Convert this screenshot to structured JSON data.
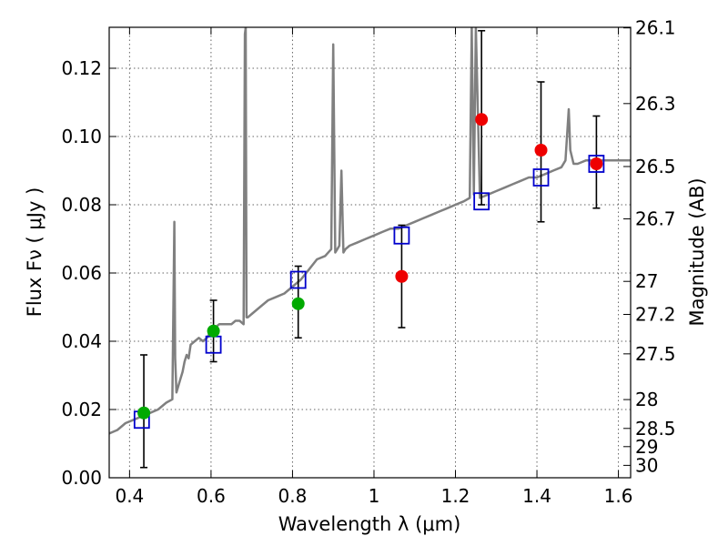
{
  "chart_data": {
    "type": "scatter",
    "xlabel": "Wavelength  λ (μm)",
    "ylabel": "Flux  Fν  ( μJy )",
    "ylabel_right": "Magnitude (AB)",
    "xlim": [
      0.35,
      1.63
    ],
    "ylim": [
      0.0,
      0.132
    ],
    "grid": true,
    "x_ticks": [
      {
        "value": 0.4,
        "label": "0.4"
      },
      {
        "value": 0.6,
        "label": "0.6"
      },
      {
        "value": 0.8,
        "label": "0.8"
      },
      {
        "value": 1.0,
        "label": "1"
      },
      {
        "value": 1.2,
        "label": "1.2"
      },
      {
        "value": 1.4,
        "label": "1.4"
      },
      {
        "value": 1.6,
        "label": "1.6"
      }
    ],
    "y_ticks": [
      {
        "value": 0.0,
        "label": "0.00"
      },
      {
        "value": 0.02,
        "label": "0.02"
      },
      {
        "value": 0.04,
        "label": "0.04"
      },
      {
        "value": 0.06,
        "label": "0.06"
      },
      {
        "value": 0.08,
        "label": "0.08"
      },
      {
        "value": 0.1,
        "label": "0.10"
      },
      {
        "value": 0.12,
        "label": "0.12"
      }
    ],
    "magnitude_ticks": [
      {
        "mag": 26.1,
        "label": "26.1"
      },
      {
        "mag": 26.3,
        "label": "26.3"
      },
      {
        "mag": 26.5,
        "label": "26.5"
      },
      {
        "mag": 26.7,
        "label": "26.7"
      },
      {
        "mag": 27.0,
        "label": "27"
      },
      {
        "mag": 27.2,
        "label": "27.2"
      },
      {
        "mag": 27.5,
        "label": "27.5"
      },
      {
        "mag": 28.0,
        "label": "28"
      },
      {
        "mag": 28.5,
        "label": "28.5"
      },
      {
        "mag": 29.0,
        "label": "29"
      },
      {
        "mag": 30.0,
        "label": "30"
      }
    ],
    "colors": {
      "spectrum": "#808080",
      "model_box": "#0000cc",
      "green_point": "#00aa00",
      "red_point": "#ee0000",
      "error_bar": "#000000",
      "grid": "#666666"
    },
    "spectrum": {
      "x": [
        0.35,
        0.37,
        0.39,
        0.41,
        0.43,
        0.45,
        0.47,
        0.49,
        0.505,
        0.51,
        0.512,
        0.515,
        0.52,
        0.525,
        0.53,
        0.535,
        0.54,
        0.545,
        0.55,
        0.56,
        0.57,
        0.58,
        0.59,
        0.6,
        0.61,
        0.62,
        0.63,
        0.64,
        0.65,
        0.66,
        0.67,
        0.68,
        0.683,
        0.685,
        0.687,
        0.69,
        0.7,
        0.72,
        0.74,
        0.76,
        0.78,
        0.8,
        0.82,
        0.84,
        0.86,
        0.88,
        0.895,
        0.9,
        0.905,
        0.91,
        0.915,
        0.92,
        0.925,
        0.93,
        0.94,
        0.96,
        0.98,
        1.0,
        1.02,
        1.04,
        1.06,
        1.08,
        1.1,
        1.12,
        1.14,
        1.16,
        1.18,
        1.2,
        1.22,
        1.235,
        1.24,
        1.245,
        1.25,
        1.26,
        1.28,
        1.3,
        1.32,
        1.34,
        1.36,
        1.38,
        1.4,
        1.42,
        1.44,
        1.46,
        1.47,
        1.478,
        1.482,
        1.49,
        1.5,
        1.52,
        1.54,
        1.56,
        1.58,
        1.6,
        1.63
      ],
      "y": [
        0.013,
        0.014,
        0.016,
        0.017,
        0.018,
        0.019,
        0.02,
        0.022,
        0.023,
        0.075,
        0.035,
        0.025,
        0.027,
        0.029,
        0.031,
        0.034,
        0.036,
        0.035,
        0.039,
        0.04,
        0.041,
        0.04,
        0.041,
        0.043,
        0.044,
        0.045,
        0.045,
        0.045,
        0.045,
        0.046,
        0.046,
        0.045,
        0.13,
        0.132,
        0.047,
        0.047,
        0.048,
        0.05,
        0.052,
        0.053,
        0.054,
        0.056,
        0.058,
        0.061,
        0.064,
        0.065,
        0.067,
        0.127,
        0.066,
        0.067,
        0.068,
        0.09,
        0.066,
        0.067,
        0.068,
        0.069,
        0.07,
        0.071,
        0.072,
        0.073,
        0.073,
        0.074,
        0.075,
        0.076,
        0.077,
        0.078,
        0.079,
        0.08,
        0.081,
        0.082,
        0.132,
        0.083,
        0.132,
        0.082,
        0.083,
        0.084,
        0.085,
        0.086,
        0.087,
        0.088,
        0.088,
        0.089,
        0.09,
        0.091,
        0.093,
        0.108,
        0.096,
        0.092,
        0.092,
        0.093,
        0.093,
        0.093,
        0.093,
        0.093,
        0.093
      ]
    },
    "model_boxes": [
      {
        "x": 0.43,
        "y": 0.017
      },
      {
        "x": 0.606,
        "y": 0.039
      },
      {
        "x": 0.814,
        "y": 0.058
      },
      {
        "x": 1.068,
        "y": 0.071
      },
      {
        "x": 1.264,
        "y": 0.081
      },
      {
        "x": 1.41,
        "y": 0.088
      },
      {
        "x": 1.546,
        "y": 0.092
      }
    ],
    "green_points": [
      {
        "x": 0.435,
        "y": 0.019,
        "err_low": 0.016,
        "err_high": 0.017
      },
      {
        "x": 0.606,
        "y": 0.043,
        "err_low": 0.009,
        "err_high": 0.009
      },
      {
        "x": 0.814,
        "y": 0.051,
        "err_low": 0.01,
        "err_high": 0.011
      }
    ],
    "red_points": [
      {
        "x": 1.068,
        "y": 0.059,
        "err_low": 0.015,
        "err_high": 0.015
      },
      {
        "x": 1.264,
        "y": 0.105,
        "err_low": 0.025,
        "err_high": 0.026
      },
      {
        "x": 1.41,
        "y": 0.096,
        "err_low": 0.021,
        "err_high": 0.02
      },
      {
        "x": 1.546,
        "y": 0.092,
        "err_low": 0.013,
        "err_high": 0.014
      }
    ]
  }
}
